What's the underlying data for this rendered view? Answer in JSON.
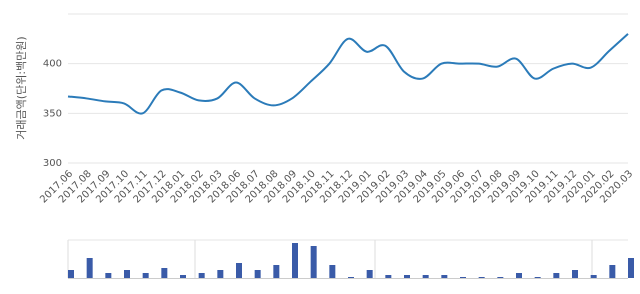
{
  "chart_data": [
    {
      "type": "line",
      "y_label": "거래금액(단위:백만원)",
      "categories": [
        "2017.06",
        "2017.08",
        "2017.09",
        "2017.10",
        "2017.11",
        "2017.12",
        "2018.01",
        "2018.02",
        "2018.03",
        "2018.06",
        "2018.07",
        "2018.08",
        "2018.09",
        "2018.10",
        "2018.11",
        "2018.12",
        "2019.01",
        "2019.02",
        "2019.03",
        "2019.04",
        "2019.05",
        "2019.06",
        "2019.07",
        "2019.08",
        "2019.09",
        "2019.10",
        "2019.11",
        "2019.12",
        "2020.01",
        "2020.02",
        "2020.03"
      ],
      "values": [
        367,
        365,
        362,
        360,
        350,
        373,
        371,
        363,
        365,
        381,
        365,
        358,
        365,
        382,
        400,
        425,
        412,
        418,
        392,
        385,
        400,
        400,
        400,
        397,
        405,
        385,
        395,
        400,
        396,
        413,
        430
      ],
      "color": "#2b7bb9",
      "ylim": [
        300,
        450
      ],
      "yticks": [
        300,
        350,
        400
      ],
      "grid": true
    },
    {
      "type": "bar",
      "values": [
        8,
        20,
        5,
        8,
        5,
        10,
        3,
        5,
        8,
        15,
        8,
        13,
        35,
        32,
        13,
        1,
        8,
        3,
        3,
        3,
        3,
        1,
        1,
        1,
        5,
        1,
        5,
        8,
        3,
        13,
        20
      ],
      "color": "#3a5ba8",
      "ylim": [
        0,
        38
      ]
    }
  ]
}
